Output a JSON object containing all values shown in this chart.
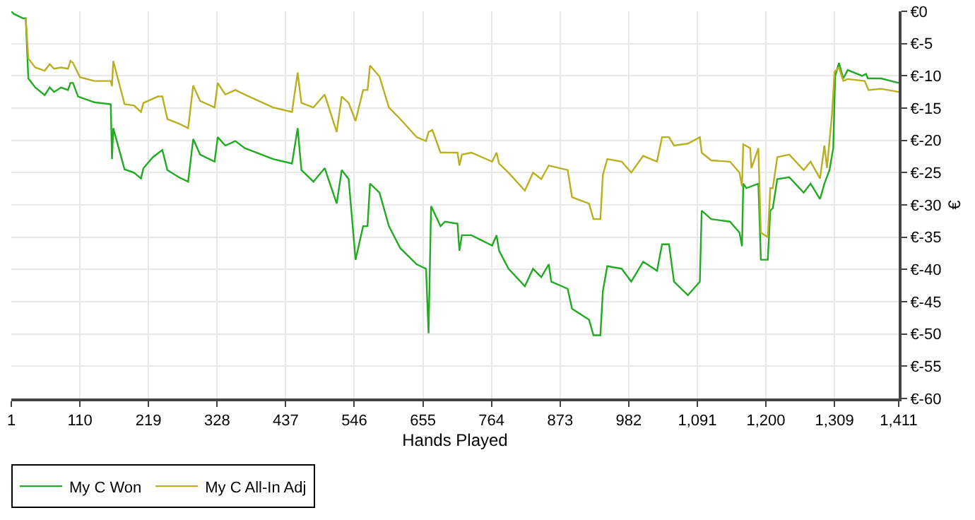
{
  "chart_data": {
    "type": "line",
    "xlabel": "Hands Played",
    "ylabel": "€",
    "grid": true,
    "legend": "bottom left",
    "marker": "none",
    "line_style": "solid",
    "xlim": [
      1,
      1411
    ],
    "ylim": [
      -60,
      0
    ],
    "xticks": [
      1,
      110,
      219,
      328,
      437,
      546,
      655,
      764,
      873,
      982,
      {
        "value": 1091,
        "label": "1,091"
      },
      {
        "value": 1200,
        "label": "1,200"
      },
      {
        "value": 1309,
        "label": "1,309"
      },
      {
        "value": 1411,
        "label": "1,411"
      }
    ],
    "yticks": [
      {
        "value": 0,
        "label": "€0"
      },
      {
        "value": -5,
        "label": "€-5"
      },
      {
        "value": -10,
        "label": "€-10"
      },
      {
        "value": -15,
        "label": "€-15"
      },
      {
        "value": -20,
        "label": "€-20"
      },
      {
        "value": -25,
        "label": "€-25"
      },
      {
        "value": -30,
        "label": "€-30"
      },
      {
        "value": -35,
        "label": "€-35"
      },
      {
        "value": -40,
        "label": "€-40"
      },
      {
        "value": -45,
        "label": "€-45"
      },
      {
        "value": -50,
        "label": "€-50"
      },
      {
        "value": -55,
        "label": "€-55"
      },
      {
        "value": -60,
        "label": "€-60"
      }
    ],
    "series": [
      {
        "name": "My C Won",
        "color": "#22aa22",
        "x": [
          1,
          5,
          20,
          24,
          28,
          39,
          54,
          62,
          69,
          80,
          91,
          95,
          99,
          107,
          133,
          159,
          161,
          163,
          181,
          196,
          207,
          211,
          226,
          241,
          249,
          267,
          282,
          290,
          301,
          324,
          329,
          341,
          357,
          372,
          417,
          447,
          456,
          462,
          481,
          499,
          518,
          526,
          537,
          548,
          560,
          567,
          571,
          586,
          601,
          619,
          645,
          660,
          664,
          668,
          683,
          690,
          710,
          713,
          717,
          732,
          765,
          772,
          776,
          791,
          817,
          830,
          843,
          855,
          859,
          885,
          892,
          919,
          926,
          937,
          941,
          948,
          971,
          986,
          1005,
          1027,
          1035,
          1046,
          1054,
          1076,
          1095,
          1098,
          1113,
          1143,
          1158,
          1162,
          1164,
          1169,
          1188,
          1192,
          1203,
          1207,
          1211,
          1218,
          1237,
          1260,
          1271,
          1286,
          1293,
          1301,
          1307,
          1310,
          1316,
          1323,
          1330,
          1353,
          1359,
          1362,
          1383,
          1411
        ],
        "values": [
          0,
          -0.4,
          -1.1,
          -1.1,
          -10.4,
          -11.8,
          -13,
          -11.8,
          -12.5,
          -11.8,
          -12.2,
          -11.1,
          -11.1,
          -13.2,
          -14.1,
          -14.4,
          -22.9,
          -18.1,
          -24.5,
          -25,
          -25.9,
          -24.3,
          -22.6,
          -21.5,
          -24.6,
          -25.7,
          -26.4,
          -19.8,
          -22.2,
          -23.3,
          -19.5,
          -20.8,
          -20.1,
          -21.2,
          -22.9,
          -23.6,
          -18.1,
          -24.6,
          -26.4,
          -24.3,
          -29.8,
          -24.6,
          -26,
          -38.5,
          -33.3,
          -33.3,
          -26.7,
          -28.1,
          -33.3,
          -36.7,
          -39.2,
          -39.9,
          -49.9,
          -30.2,
          -33.3,
          -32.6,
          -32.9,
          -37.1,
          -34.7,
          -34.7,
          -36.3,
          -34.7,
          -37.1,
          -39.9,
          -42.6,
          -39.9,
          -41.2,
          -39.2,
          -41.9,
          -43,
          -46.1,
          -47.8,
          -50.2,
          -50.2,
          -43.3,
          -39.5,
          -39.9,
          -41.9,
          -38.8,
          -40.2,
          -36.1,
          -36.1,
          -41.9,
          -44,
          -41.9,
          -30.9,
          -32.2,
          -32.6,
          -34.3,
          -36.4,
          -26.7,
          -27.4,
          -26.7,
          -38.5,
          -38.5,
          -30.9,
          -30.5,
          -26,
          -25.7,
          -28.1,
          -26.7,
          -29.1,
          -26.7,
          -24.6,
          -21.2,
          -10.1,
          -8,
          -10.4,
          -9.1,
          -10,
          -9.7,
          -10.4,
          -10.4,
          -11.1
        ]
      },
      {
        "name": "My C All-In Adj",
        "color": "#b8b020",
        "x": [
          24,
          28,
          39,
          54,
          62,
          69,
          80,
          91,
          95,
          99,
          110,
          133,
          159,
          161,
          163,
          181,
          196,
          207,
          211,
          234,
          241,
          249,
          267,
          282,
          290,
          301,
          324,
          329,
          341,
          357,
          372,
          417,
          447,
          456,
          462,
          481,
          499,
          518,
          526,
          537,
          548,
          560,
          567,
          571,
          586,
          601,
          619,
          645,
          660,
          664,
          670,
          683,
          710,
          713,
          717,
          732,
          765,
          772,
          776,
          791,
          817,
          830,
          843,
          855,
          885,
          892,
          919,
          926,
          937,
          941,
          948,
          971,
          986,
          1005,
          1027,
          1035,
          1046,
          1054,
          1076,
          1095,
          1098,
          1113,
          1143,
          1158,
          1162,
          1164,
          1175,
          1177,
          1188,
          1192,
          1203,
          1207,
          1211,
          1218,
          1237,
          1260,
          1271,
          1286,
          1293,
          1297,
          1305,
          1309,
          1316,
          1323,
          1330,
          1357,
          1363,
          1383,
          1411
        ],
        "values": [
          -1.1,
          -7.3,
          -8.7,
          -9.2,
          -8.2,
          -8.9,
          -8.7,
          -8.9,
          -7.7,
          -8,
          -10.2,
          -10.8,
          -10.8,
          -11.6,
          -7.7,
          -14.4,
          -14.6,
          -15.6,
          -14.2,
          -13.2,
          -13.2,
          -16.7,
          -17.4,
          -18.1,
          -11.5,
          -13.9,
          -14.9,
          -11.1,
          -12.9,
          -12.2,
          -12.9,
          -14.9,
          -15.6,
          -9.5,
          -14.2,
          -14.9,
          -12.9,
          -18.7,
          -13.2,
          -14.2,
          -17,
          -12.2,
          -12.2,
          -8.4,
          -10.1,
          -14.9,
          -16.7,
          -19.5,
          -20.1,
          -18.7,
          -18.4,
          -21.9,
          -21.9,
          -23.9,
          -22.2,
          -21.9,
          -23.3,
          -21.9,
          -23.6,
          -25,
          -27.8,
          -25,
          -26,
          -23.9,
          -24.6,
          -28.8,
          -29.8,
          -32.2,
          -32.2,
          -25.3,
          -22.9,
          -23.3,
          -25,
          -22.4,
          -23.3,
          -19.5,
          -19.5,
          -20.8,
          -20.5,
          -19.5,
          -21.9,
          -23.1,
          -23.3,
          -25,
          -27.1,
          -20.6,
          -21.2,
          -24.3,
          -21.2,
          -34.3,
          -35,
          -27.4,
          -27.4,
          -22.6,
          -22.2,
          -24.6,
          -23.3,
          -25.9,
          -20.8,
          -24.3,
          -16,
          -9.4,
          -8.7,
          -10.8,
          -10.5,
          -10.8,
          -12.2,
          -12,
          -12.5
        ]
      }
    ]
  }
}
